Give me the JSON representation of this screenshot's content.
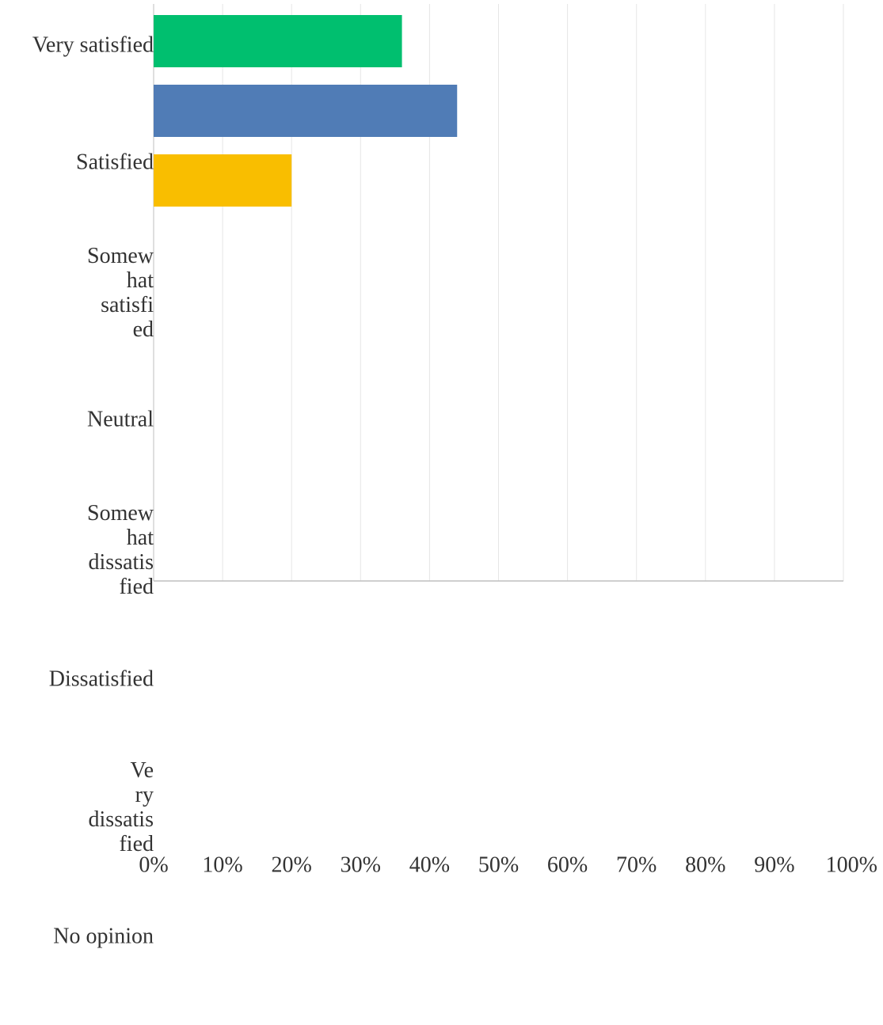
{
  "chart_data": {
    "type": "bar",
    "orientation": "horizontal",
    "categories": [
      {
        "lines": [
          "Very satisfied"
        ]
      },
      {
        "lines": [
          "Satisfied"
        ]
      },
      {
        "lines": [
          "Somew",
          "hat",
          "satisfi",
          "ed"
        ]
      },
      {
        "lines": [
          "Neutral"
        ]
      },
      {
        "lines": [
          "Somew",
          "hat",
          "dissatis",
          "fied"
        ]
      },
      {
        "lines": [
          "Dissatisfied"
        ]
      },
      {
        "lines": [
          "Ve",
          "ry",
          "dissatis",
          "fied"
        ]
      },
      {
        "lines": [
          "No opinion"
        ]
      }
    ],
    "bars": [
      {
        "category_index": 0,
        "value": 36,
        "color": "#00BF6F"
      },
      {
        "category_index": 0,
        "value": 44,
        "color": "#507CB6"
      },
      {
        "category_index": 1,
        "value": 20,
        "color": "#F9BE00"
      }
    ],
    "x_ticks": [
      "0%",
      "10%",
      "20%",
      "30%",
      "40%",
      "50%",
      "60%",
      "70%",
      "80%",
      "90%",
      "100%"
    ],
    "xlim": [
      0,
      100
    ],
    "grid": true,
    "colors": {
      "grid": "#e6e6e6",
      "axis": "#bfbfbf",
      "text": "#333333"
    }
  }
}
